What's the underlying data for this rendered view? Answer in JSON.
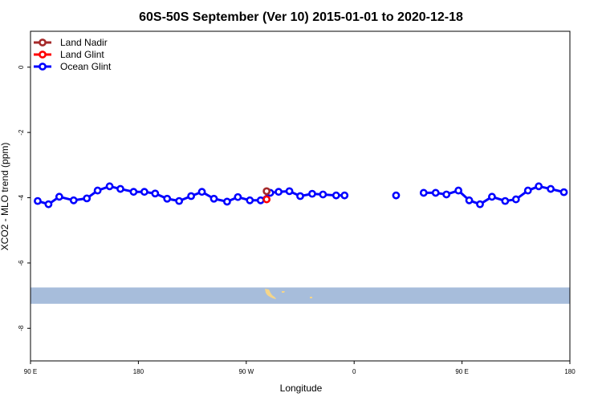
{
  "chart_data": {
    "type": "line",
    "title": "60S-50S September (Ver 10)   2015-01-01 to 2020-12-18",
    "xlabel": "Longitude",
    "ylabel": "XCO2 - MLO trend (ppm)",
    "xlim": [
      90,
      540
    ],
    "ylim": [
      -9,
      1.1
    ],
    "x_ticks": [
      {
        "value": 90,
        "label": "90 E"
      },
      {
        "value": 180,
        "label": "180"
      },
      {
        "value": 270,
        "label": "90 W"
      },
      {
        "value": 360,
        "label": "0"
      },
      {
        "value": 450,
        "label": "90 E"
      },
      {
        "value": 540,
        "label": "180"
      }
    ],
    "y_ticks": [
      {
        "value": 0,
        "label": "0"
      },
      {
        "value": -2,
        "label": "-2"
      },
      {
        "value": -4,
        "label": "-4"
      },
      {
        "value": -6,
        "label": "-6"
      },
      {
        "value": -8,
        "label": "-8"
      }
    ],
    "latitude_band": {
      "ymin": -7.25,
      "ymax": -6.75,
      "color": "#a7bddb"
    },
    "land_color": "#f4d58a",
    "legend_position": "top-left",
    "series": [
      {
        "name": "Land Nadir",
        "color": "#a52a2a",
        "segments": [
          [
            [
              287,
              -3.8
            ]
          ]
        ]
      },
      {
        "name": "Land Glint",
        "color": "#ff0000",
        "segments": [
          [
            [
              287,
              -4.05
            ]
          ]
        ]
      },
      {
        "name": "Ocean Glint",
        "color": "#0000ff",
        "segments": [
          [
            [
              96,
              -4.1
            ],
            [
              105,
              -4.2
            ],
            [
              114,
              -3.97
            ],
            [
              126,
              -4.08
            ],
            [
              137,
              -4.02
            ],
            [
              146,
              -3.78
            ],
            [
              156,
              -3.65
            ],
            [
              165,
              -3.73
            ],
            [
              176,
              -3.82
            ],
            [
              185,
              -3.82
            ],
            [
              194,
              -3.87
            ],
            [
              204,
              -4.03
            ],
            [
              214,
              -4.1
            ],
            [
              224,
              -3.95
            ],
            [
              233,
              -3.82
            ],
            [
              243,
              -4.03
            ],
            [
              254,
              -4.12
            ],
            [
              263,
              -3.98
            ],
            [
              273,
              -4.08
            ],
            [
              282,
              -4.08
            ],
            [
              290,
              -3.85
            ],
            [
              297,
              -3.82
            ],
            [
              306,
              -3.8
            ],
            [
              315,
              -3.95
            ],
            [
              325,
              -3.88
            ],
            [
              334,
              -3.9
            ],
            [
              345,
              -3.93
            ],
            [
              352,
              -3.93
            ]
          ],
          [
            [
              395,
              -3.93
            ]
          ],
          [
            [
              418,
              -3.85
            ],
            [
              428,
              -3.85
            ],
            [
              437,
              -3.9
            ],
            [
              447,
              -3.78
            ],
            [
              456,
              -4.08
            ],
            [
              465,
              -4.2
            ],
            [
              475,
              -3.97
            ],
            [
              486,
              -4.1
            ],
            [
              495,
              -4.05
            ],
            [
              505,
              -3.78
            ],
            [
              514,
              -3.65
            ],
            [
              524,
              -3.73
            ],
            [
              535,
              -3.83
            ]
          ]
        ]
      }
    ]
  }
}
